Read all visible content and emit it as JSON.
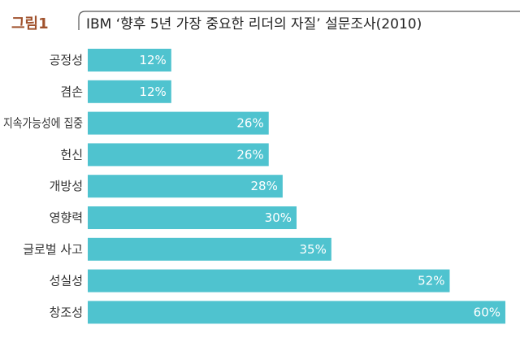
{
  "figure": {
    "label": "그림1",
    "title": "IBM ‘향후 5년 가장 중요한 리더의 자질’ 설문조사(2010)"
  },
  "colors": {
    "label": "#a0522d",
    "bar": "#4fc3cf",
    "frame": "#555555"
  },
  "chart_data": {
    "type": "bar",
    "orientation": "horizontal",
    "title": "IBM ‘향후 5년 가장 중요한 리더의 자질’ 설문조사(2010)",
    "xlabel": "",
    "ylabel": "",
    "unit": "%",
    "xlim": [
      0,
      60
    ],
    "grid": false,
    "categories": [
      "공정성",
      "겸손",
      "지속가능성에 집중",
      "헌신",
      "개방성",
      "영향력",
      "글로벌 사고",
      "성실성",
      "창조성"
    ],
    "values": [
      12,
      12,
      26,
      26,
      28,
      30,
      35,
      52,
      60
    ],
    "value_labels": [
      "12%",
      "12%",
      "26%",
      "26%",
      "28%",
      "30%",
      "35%",
      "52%",
      "60%"
    ]
  }
}
